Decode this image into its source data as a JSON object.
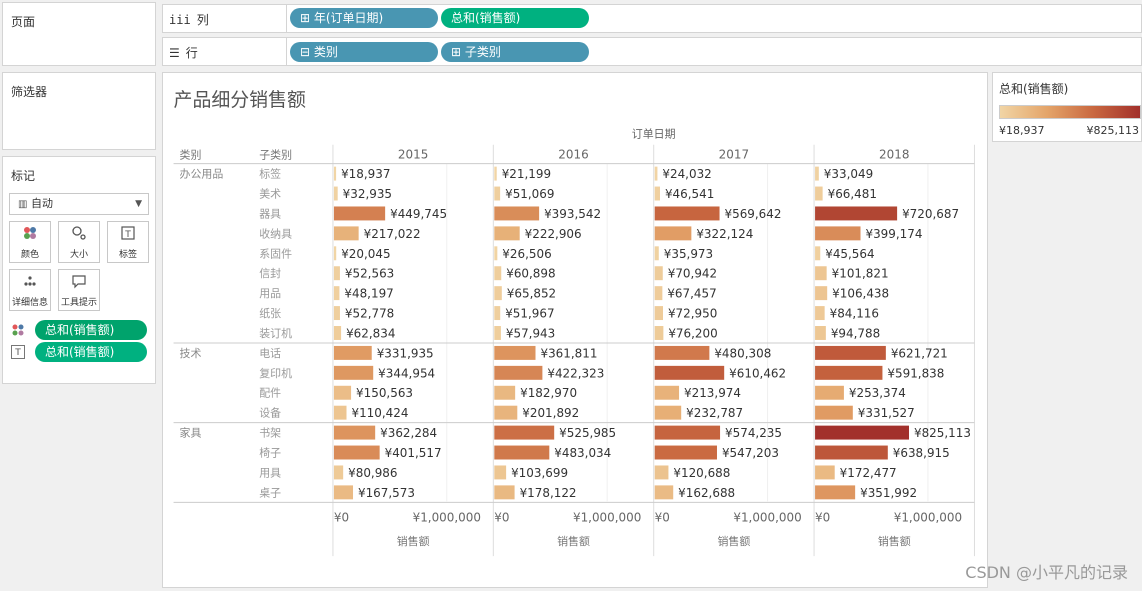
{
  "pages": {
    "title": "页面"
  },
  "filters": {
    "title": "筛选器"
  },
  "marks": {
    "title": "标记",
    "type": "自动",
    "buttons": {
      "color": "颜色",
      "size": "大小",
      "label": "标签",
      "detail": "详细信息",
      "tooltip": "工具提示"
    },
    "fields": [
      "总和(销售额)",
      "总和(销售额)"
    ]
  },
  "columns_shelf": {
    "label": "列",
    "glyph": "iii",
    "pills": [
      "年(订单日期)",
      "总和(销售额)"
    ]
  },
  "rows_shelf": {
    "label": "行",
    "glyph": "☰",
    "pills": [
      "类别",
      "子类别"
    ]
  },
  "legend": {
    "title": "总和(销售额)",
    "min": "¥18,937",
    "max": "¥825,113"
  },
  "sheet": {
    "title": "产品细分销售额",
    "column_header": "订单日期",
    "row_headers": [
      "类别",
      "子类别"
    ],
    "axis_title": "销售额",
    "axis_ticks": [
      "¥0",
      "¥1,000,000"
    ]
  },
  "watermark": "CSDN @小平凡的记录",
  "colors": {
    "low": "#f1d5a5",
    "mid": "#e4a56a",
    "high": "#c96840",
    "max": "#a2302b"
  },
  "chart_data": {
    "type": "bar",
    "title": "产品细分销售额",
    "xlabel": "销售额",
    "years": [
      "2015",
      "2016",
      "2017",
      "2018"
    ],
    "xlim": [
      0,
      1400000
    ],
    "color_range": [
      18937,
      825113
    ],
    "groups": [
      {
        "category": "办公用品",
        "rows": [
          {
            "sub": "标签",
            "values": [
              18937,
              21199,
              24032,
              33049
            ],
            "labels": [
              "¥18,937",
              "¥21,199",
              "¥24,032",
              "¥33,049"
            ]
          },
          {
            "sub": "美术",
            "values": [
              32935,
              51069,
              46541,
              66481
            ],
            "labels": [
              "¥32,935",
              "¥51,069",
              "¥46,541",
              "¥66,481"
            ]
          },
          {
            "sub": "器具",
            "values": [
              449745,
              393542,
              569642,
              720687
            ],
            "labels": [
              "¥449,745",
              "¥393,542",
              "¥569,642",
              "¥720,687"
            ]
          },
          {
            "sub": "收纳具",
            "values": [
              217022,
              222906,
              322124,
              399174
            ],
            "labels": [
              "¥217,022",
              "¥222,906",
              "¥322,124",
              "¥399,174"
            ]
          },
          {
            "sub": "系固件",
            "values": [
              20045,
              26506,
              35973,
              45564
            ],
            "labels": [
              "¥20,045",
              "¥26,506",
              "¥35,973",
              "¥45,564"
            ]
          },
          {
            "sub": "信封",
            "values": [
              52563,
              60898,
              70942,
              101821
            ],
            "labels": [
              "¥52,563",
              "¥60,898",
              "¥70,942",
              "¥101,821"
            ]
          },
          {
            "sub": "用品",
            "values": [
              48197,
              65852,
              67457,
              106438
            ],
            "labels": [
              "¥48,197",
              "¥65,852",
              "¥67,457",
              "¥106,438"
            ]
          },
          {
            "sub": "纸张",
            "values": [
              52778,
              51967,
              72950,
              84116
            ],
            "labels": [
              "¥52,778",
              "¥51,967",
              "¥72,950",
              "¥84,116"
            ]
          },
          {
            "sub": "装订机",
            "values": [
              62834,
              57943,
              76200,
              94788
            ],
            "labels": [
              "¥62,834",
              "¥57,943",
              "¥76,200",
              "¥94,788"
            ]
          }
        ]
      },
      {
        "category": "技术",
        "rows": [
          {
            "sub": "电话",
            "values": [
              331935,
              361811,
              480308,
              621721
            ],
            "labels": [
              "¥331,935",
              "¥361,811",
              "¥480,308",
              "¥621,721"
            ]
          },
          {
            "sub": "复印机",
            "values": [
              344954,
              422323,
              610462,
              591838
            ],
            "labels": [
              "¥344,954",
              "¥422,323",
              "¥610,462",
              "¥591,838"
            ]
          },
          {
            "sub": "配件",
            "values": [
              150563,
              182970,
              213974,
              253374
            ],
            "labels": [
              "¥150,563",
              "¥182,970",
              "¥213,974",
              "¥253,374"
            ]
          },
          {
            "sub": "设备",
            "values": [
              110424,
              201892,
              232787,
              331527
            ],
            "labels": [
              "¥110,424",
              "¥201,892",
              "¥232,787",
              "¥331,527"
            ]
          }
        ]
      },
      {
        "category": "家具",
        "rows": [
          {
            "sub": "书架",
            "values": [
              362284,
              525985,
              574235,
              825113
            ],
            "labels": [
              "¥362,284",
              "¥525,985",
              "¥574,235",
              "¥825,113"
            ]
          },
          {
            "sub": "椅子",
            "values": [
              401517,
              483034,
              547203,
              638915
            ],
            "labels": [
              "¥401,517",
              "¥483,034",
              "¥547,203",
              "¥638,915"
            ]
          },
          {
            "sub": "用具",
            "values": [
              80986,
              103699,
              120688,
              172477
            ],
            "labels": [
              "¥80,986",
              "¥103,699",
              "¥120,688",
              "¥172,477"
            ]
          },
          {
            "sub": "桌子",
            "values": [
              167573,
              178122,
              162688,
              351992
            ],
            "labels": [
              "¥167,573",
              "¥178,122",
              "¥162,688",
              "¥351,992"
            ]
          }
        ]
      }
    ]
  }
}
